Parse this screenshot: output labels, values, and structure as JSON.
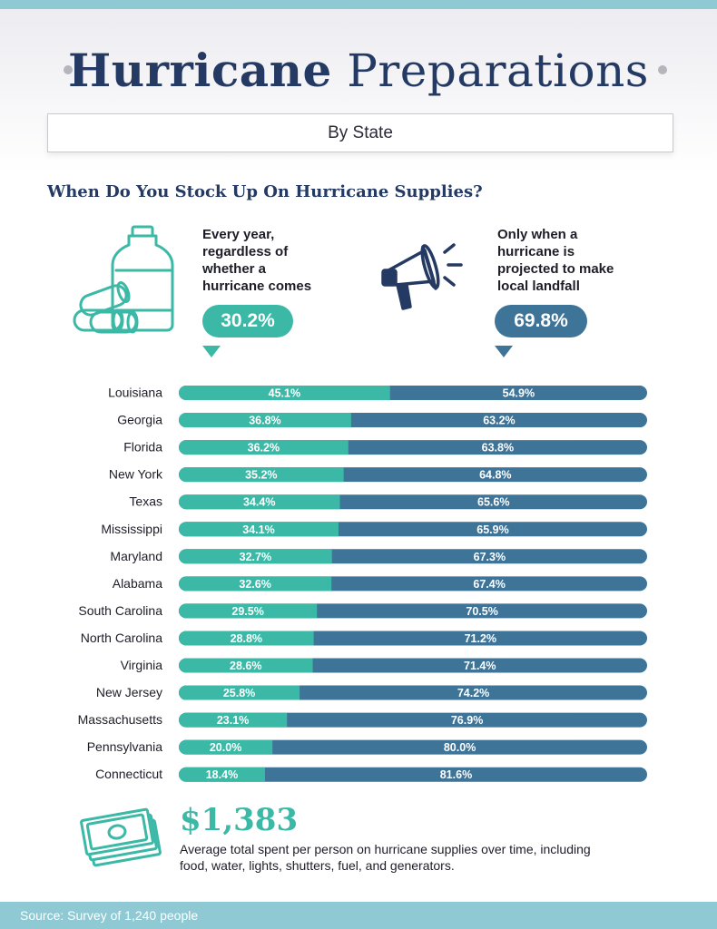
{
  "header": {
    "title_bold": "Hurricane",
    "title_light": "Preparations",
    "subtitle": "By State"
  },
  "question": "When Do You Stock Up On Hurricane Supplies?",
  "options": [
    {
      "text": "Every year,\nregardless of\nwhether a\nhurricane comes",
      "value": "30.2%",
      "icon": "water-jug-batteries-icon"
    },
    {
      "text": "Only when a\nhurricane is\nprojected to make\nlocal landfall",
      "value": "69.8%",
      "icon": "megaphone-icon"
    }
  ],
  "colors": {
    "teal": "#3cb9a6",
    "blue": "#3f7499",
    "navy": "#243a63",
    "band": "#8ec9d4"
  },
  "chart_data": {
    "type": "bar",
    "stacked": true,
    "orientation": "horizontal",
    "categories": [
      "Louisiana",
      "Georgia",
      "Florida",
      "New York",
      "Texas",
      "Mississippi",
      "Maryland",
      "Alabama",
      "South Carolina",
      "North Carolina",
      "Virginia",
      "New Jersey",
      "Massachusetts",
      "Pennsylvania",
      "Connecticut"
    ],
    "series": [
      {
        "values": [
          45.1,
          36.8,
          36.2,
          35.2,
          34.4,
          34.1,
          32.7,
          32.6,
          29.5,
          28.8,
          28.6,
          25.8,
          23.1,
          20.0,
          18.4
        ],
        "color": "#3cb9a6"
      },
      {
        "values": [
          54.9,
          63.2,
          63.8,
          64.8,
          65.6,
          65.9,
          67.3,
          67.4,
          70.5,
          71.2,
          71.4,
          74.2,
          76.9,
          80.0,
          81.6
        ],
        "color": "#3f7499"
      }
    ],
    "value_suffix": "%",
    "xlim": [
      0,
      100
    ]
  },
  "footer_stat": {
    "amount": "$1,383",
    "description": "Average total spent per person on hurricane supplies over time, including food, water, lights, shutters, fuel, and generators.",
    "icon": "money-stack-icon"
  },
  "source": "Source: Survey of 1,240 people"
}
